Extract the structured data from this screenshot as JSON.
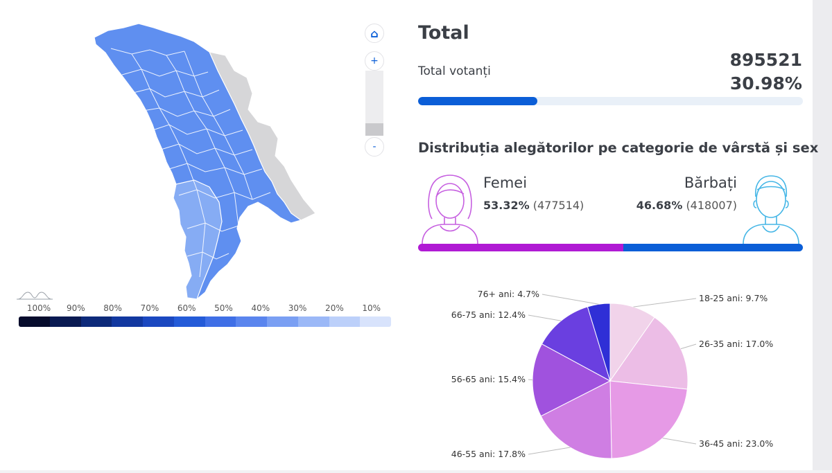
{
  "map": {
    "controls": {
      "home_glyph": "⌂",
      "zoom_in_glyph": "+",
      "zoom_out_glyph": "-"
    },
    "region_color": "#5f8ff0",
    "region_color_light": "#86acf4",
    "outside_color": "#d6d6d8",
    "legend": {
      "labels": [
        "100%",
        "90%",
        "80%",
        "70%",
        "60%",
        "50%",
        "40%",
        "30%",
        "20%",
        "10%"
      ],
      "colors": [
        "#060c2c",
        "#0a1a52",
        "#0d2a7a",
        "#1238a0",
        "#1b48c0",
        "#245bd8",
        "#3f6fe6",
        "#5a85ee",
        "#7a9ff3",
        "#9bb8f7",
        "#bcd0fa",
        "#d8e3fc"
      ]
    }
  },
  "summary": {
    "title": "Total",
    "total_label": "Total votanți",
    "total_count": "895521",
    "total_percent": "30.98%",
    "progress_fraction": 0.3098,
    "progress_color": "#0b5ed7"
  },
  "distribution": {
    "title": "Distribuția alegătorilor pe categorie de vârstă și sex",
    "female": {
      "label": "Femei",
      "percent": "53.32%",
      "count": "(477514)",
      "fraction": 0.5332,
      "color": "#b01ad4"
    },
    "male": {
      "label": "Bărbați",
      "percent": "46.68%",
      "count": "(418007)",
      "fraction": 0.4668,
      "color": "#0b5ed7"
    }
  },
  "chart_data": {
    "type": "pie",
    "title": "",
    "slices": [
      {
        "label": "18-25 ani: 9.7%",
        "value": 9.7,
        "color": "#f1d3ea"
      },
      {
        "label": "26-35 ani: 17.0%",
        "value": 17.0,
        "color": "#ecbde6"
      },
      {
        "label": "36-45 ani: 23.0%",
        "value": 23.0,
        "color": "#e69ae6"
      },
      {
        "label": "46-55 ani: 17.8%",
        "value": 17.8,
        "color": "#cf7ee3"
      },
      {
        "label": "56-65 ani: 15.4%",
        "value": 15.4,
        "color": "#a052de"
      },
      {
        "label": "66-75 ani: 12.4%",
        "value": 12.4,
        "color": "#6a3fe0"
      },
      {
        "label": "76+ ani: 4.7%",
        "value": 4.7,
        "color": "#2f2fd6"
      }
    ]
  }
}
